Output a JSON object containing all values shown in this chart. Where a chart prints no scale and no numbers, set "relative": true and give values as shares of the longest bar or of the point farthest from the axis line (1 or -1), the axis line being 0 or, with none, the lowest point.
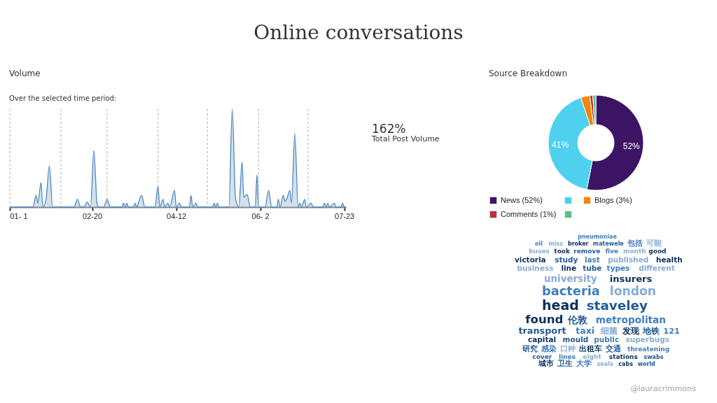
{
  "chart_data": [
    {
      "type": "other",
      "title": "Online conversations",
      "annotations": [
        "@lauracrimmons"
      ]
    },
    {
      "type": "area",
      "title": "Volume",
      "subtitle": "Over the selected time period:",
      "relative": true,
      "color": "#4f86c0",
      "x": [
        "--01-01",
        "--01-15",
        "--01-17",
        "--01-18",
        "--01-20",
        "--01-21",
        "--01-23",
        "--01-25",
        "--01-27",
        "--02-09",
        "--02-11",
        "--02-13",
        "--02-15",
        "--02-17",
        "--02-19",
        "--02-21",
        "--02-23",
        "--02-24",
        "--02-27",
        "--03-01",
        "--03-03",
        "--03-10",
        "--03-11",
        "--03-12",
        "--03-13",
        "--03-14",
        "--03-17",
        "--03-18",
        "--03-19",
        "--03-20",
        "--03-22",
        "--03-24",
        "--03-30",
        "--04-01",
        "--04-02",
        "--04-04",
        "--04-05",
        "--04-07",
        "--04-08",
        "--04-11",
        "--04-12",
        "--04-14",
        "--04-15",
        "--04-20",
        "--04-21",
        "--04-22",
        "--04-24",
        "--04-25",
        "--05-04",
        "--05-05",
        "--05-06",
        "--05-07",
        "--05-08",
        "--05-14",
        "--05-16",
        "--05-18",
        "--05-20",
        "--05-22",
        "--05-23",
        "--05-25",
        "--05-27",
        "--05-30",
        "--05-31",
        "--06-01",
        "--06-05",
        "--06-07",
        "--06-09",
        "--06-12",
        "--06-13",
        "--06-14",
        "--06-16",
        "--06-17",
        "--06-18",
        "--06-20",
        "--06-21",
        "--06-23",
        "--06-25",
        "--06-26",
        "--06-27",
        "--06-29",
        "--06-30",
        "--07-03",
        "--07-04",
        "--07-10",
        "--07-11",
        "--07-12",
        "--07-13",
        "--07-14",
        "--07-17",
        "--07-18",
        "--07-21",
        "--07-22",
        "--07-23",
        "--07-24"
      ],
      "values": [
        0,
        0,
        0.12,
        0.04,
        0.25,
        0,
        0.08,
        0.42,
        0,
        0,
        0.08,
        0,
        0,
        0.05,
        0,
        0.58,
        0.03,
        0,
        0,
        0.08,
        0,
        0,
        0.04,
        0,
        0.04,
        0,
        0,
        0.04,
        0,
        0.04,
        0.12,
        0,
        0,
        0.21,
        0,
        0.08,
        0,
        0.04,
        0,
        0.17,
        0,
        0.04,
        0,
        0,
        0.12,
        0,
        0.04,
        0,
        0,
        0.04,
        0,
        0.04,
        0,
        0,
        1,
        0.09,
        0,
        0.46,
        0.1,
        0.13,
        0,
        0,
        0.33,
        0,
        0,
        0.17,
        0,
        0,
        0.08,
        0,
        0.12,
        0.06,
        0.08,
        0.17,
        0.04,
        0.75,
        0,
        0.04,
        0,
        0.08,
        0,
        0.04,
        0,
        0,
        0.04,
        0,
        0.04,
        0,
        0.04,
        0,
        0,
        0.04,
        0,
        0
      ],
      "xlim": [
        "--01-01",
        "--07-24"
      ],
      "xticks": [
        {
          "value": "--01-01",
          "label": "01- 1"
        },
        {
          "value": "--02-20",
          "label": "02-20"
        },
        {
          "value": "--04-12",
          "label": "04-12"
        },
        {
          "value": "--06-02",
          "label": "06- 2"
        },
        {
          "value": "--07-23",
          "label": "07-23"
        }
      ],
      "ref_lines": [
        {
          "axis": "x",
          "value": "--01-01",
          "color": "#aaaaaa",
          "line_style": "dashed"
        },
        {
          "axis": "x",
          "value": "--02-01",
          "color": "#aaaaaa",
          "line_style": "dashed"
        },
        {
          "axis": "x",
          "value": "--03-01",
          "color": "#aaaaaa",
          "line_style": "dashed"
        },
        {
          "axis": "x",
          "value": "--04-01",
          "color": "#aaaaaa",
          "line_style": "dashed"
        },
        {
          "axis": "x",
          "value": "--05-01",
          "color": "#aaaaaa",
          "line_style": "dashed"
        },
        {
          "axis": "x",
          "value": "--06-01",
          "color": "#aaaaaa",
          "line_style": "dashed"
        },
        {
          "axis": "x",
          "value": "--07-01",
          "color": "#aaaaaa",
          "line_style": "dashed"
        }
      ],
      "annotations": [
        "162%",
        "Total Post Volume"
      ]
    },
    {
      "type": "donut",
      "title": "Source Breakdown",
      "legend": "bottom",
      "categories": [
        "News (52%)",
        null,
        "Blogs (3%)",
        "Comments (1%)",
        null
      ],
      "values": [
        52,
        41,
        3,
        1,
        1
      ],
      "colors": [
        "#3b1466",
        "#4fd0ee",
        "#f0860f",
        "#b0363a",
        "#5dbf8a"
      ],
      "value_labels": [
        "52%",
        "41%",
        null,
        null,
        null
      ]
    },
    {
      "type": "other",
      "annotations": [
        "head",
        "staveley",
        "bacteria",
        "london",
        "found",
        "伦敦",
        "metropolitan",
        "university",
        "insurers",
        "transport",
        "taxi",
        "细菌",
        "发现",
        "地铁",
        "121",
        "business",
        "line",
        "tube",
        "types",
        "different",
        "capital",
        "mould",
        "public",
        "superbugs",
        "victoria",
        "study",
        "last",
        "published",
        "health",
        "研究",
        "感染",
        "口种",
        "出租车",
        "交通",
        "threatening",
        "buses",
        "took",
        "remove",
        "five",
        "month",
        "good",
        "cover",
        "lines",
        "eight",
        "stations",
        "swabs",
        "oil",
        "miss",
        "broker",
        "matewele",
        "包括",
        "可能",
        "城市",
        "卫生",
        "大学",
        "seals",
        "cabs",
        "world",
        "pneumoniae"
      ]
    }
  ]
}
